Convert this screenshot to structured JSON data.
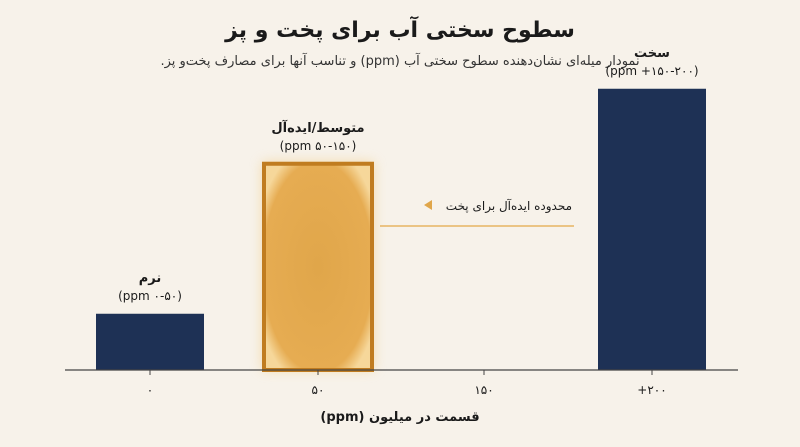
{
  "header": {
    "title": "سطوح سختی آب برای پخت و پز",
    "subtitle": "نمودار میله‌ای نشان‌دهنده سطوح سختی آب (ppm) و تناسب آنها برای مصارف پخت‌و پز."
  },
  "colors": {
    "bar_dark": "#1e3155",
    "bar_highlight": "#e0a64a",
    "highlight_border": "#c07c20",
    "annotation_line": "#e7b463",
    "background": "#f7f2ea"
  },
  "chart_data": {
    "type": "bar",
    "title": "سطوح سختی آب برای پخت و پز",
    "xlabel": "قسمت در میلیون (ppm)",
    "ylabel": "",
    "categories": [
      "۰",
      "۵۰",
      "۱۵۰",
      "۲۰۰+"
    ],
    "bars": [
      {
        "category": "۰",
        "value": 15,
        "name": "نرم",
        "range": "(۰-۵۰ ppm)",
        "highlight": false
      },
      {
        "category": "۵۰",
        "value": 55,
        "name": "متوسط/ایده‌آل",
        "range": "(۵۰-۱۵۰ ppm)",
        "highlight": true
      },
      {
        "category": "۲۰۰+",
        "value": 75,
        "name": "سخت",
        "range": "(۱۵۰-۲۰۰+ ppm)",
        "highlight": false
      }
    ],
    "ylim": [
      0,
      80
    ],
    "grid": false,
    "annotation": {
      "text": "محدوده ایده‌آل برای پخت",
      "target": "۵۰"
    }
  }
}
